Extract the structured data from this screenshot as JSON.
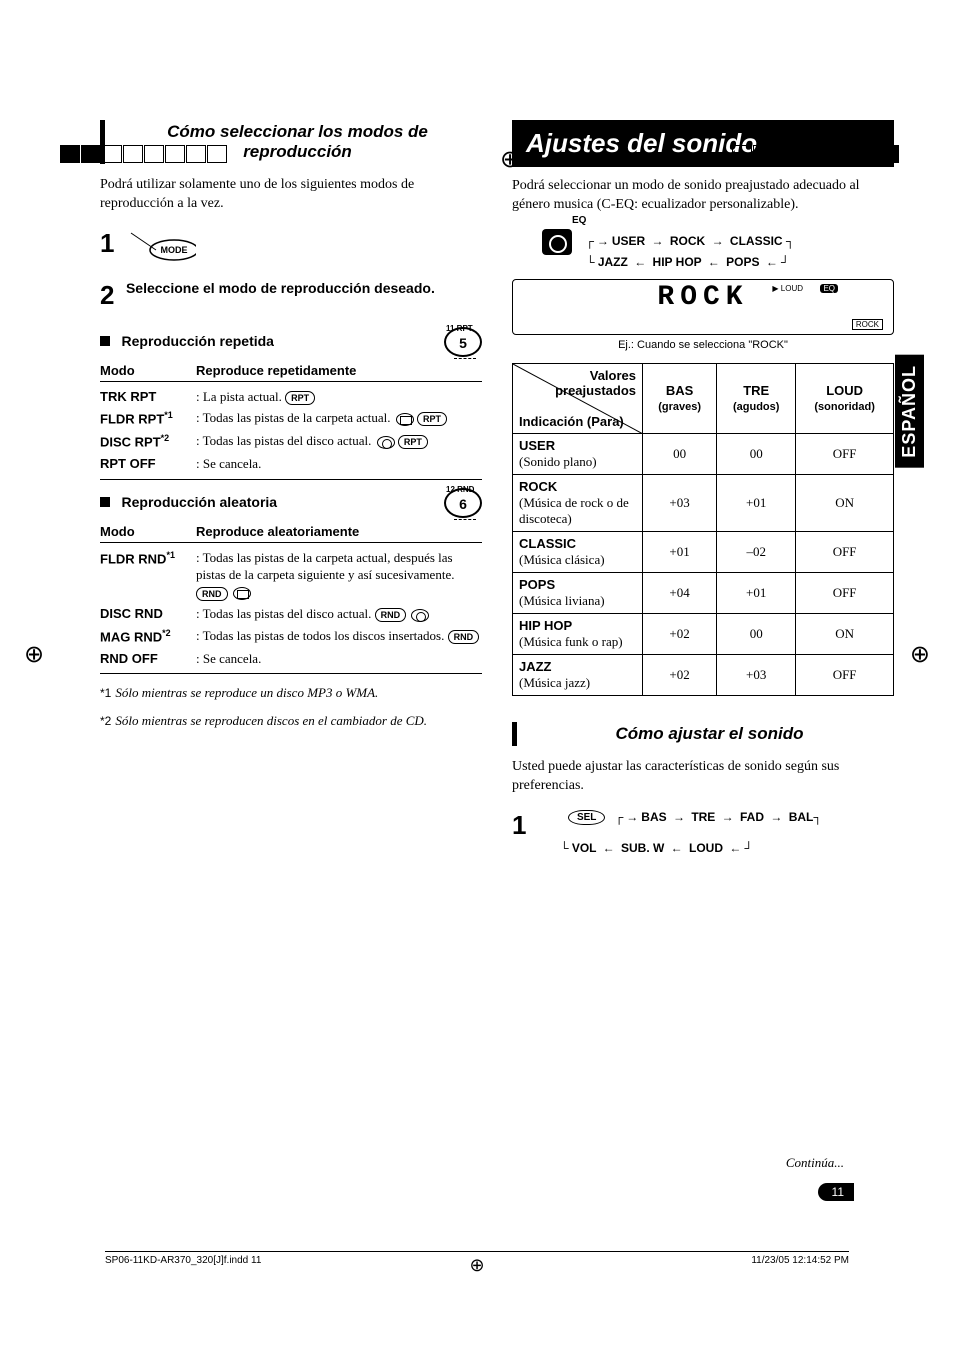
{
  "regMark": "⊕",
  "leftCol": {
    "sectionTitle": "Cómo seleccionar los modos de reproducción",
    "intro": "Podrá utilizar solamente uno de los siguientes modos de reproducción a la vez.",
    "step1Num": "1",
    "modeBtn": "MODE",
    "step2Num": "2",
    "step2Text": "Seleccione el modo de reproducción deseado.",
    "repeat": {
      "heading": "Reproducción repetida",
      "circleTiny": "11   RPT",
      "circleNum": "5",
      "colH1": "Modo",
      "colH2": "Reproduce repetidamente",
      "rows": [
        {
          "label": "TRK RPT",
          "sup": "",
          "desc": "La pista actual.",
          "icons": [
            "RPT"
          ]
        },
        {
          "label": "FLDR RPT",
          "sup": "*1",
          "desc": "Todas las pistas de la carpeta actual.",
          "icons": [
            "folder",
            "RPT"
          ]
        },
        {
          "label": "DISC RPT",
          "sup": "*2",
          "desc": "Todas las pistas del disco actual.",
          "icons": [
            "disc",
            "RPT"
          ]
        },
        {
          "label": "RPT OFF",
          "sup": "",
          "desc": "Se cancela.",
          "icons": []
        }
      ]
    },
    "random": {
      "heading": "Reproducción aleatoria",
      "circleTiny": "12   RND",
      "circleNum": "6",
      "colH1": "Modo",
      "colH2": "Reproduce aleatoriamente",
      "rows": [
        {
          "label": "FLDR RND",
          "sup": "*1",
          "desc": "Todas las pistas de la carpeta actual, después las pistas de la carpeta siguiente y así sucesivamente.",
          "icons": [
            "RND",
            "folder"
          ]
        },
        {
          "label": "DISC RND",
          "sup": "",
          "desc": "Todas las pistas del disco actual.",
          "icons": [
            "RND",
            "disc"
          ]
        },
        {
          "label": "MAG RND",
          "sup": "*2",
          "desc": "Todas las pistas de todos los discos insertados.",
          "icons": [
            "RND"
          ]
        },
        {
          "label": "RND OFF",
          "sup": "",
          "desc": "Se cancela.",
          "icons": []
        }
      ]
    },
    "footnotes": [
      {
        "mark": "*1",
        "text": "Sólo mientras se reproduce un disco MP3 o WMA."
      },
      {
        "mark": "*2",
        "text": "Sólo mientras se reproducen discos en el cambiador de CD."
      }
    ]
  },
  "rightCol": {
    "bigTitle": "Ajustes del sonido",
    "intro": "Podrá seleccionar un modo de sonido preajustado adecuado al género musica (C-EQ: ecualizador personalizable).",
    "eqLabel": "EQ",
    "eqChain1": [
      "USER",
      "ROCK",
      "CLASSIC"
    ],
    "eqChain2": [
      "JAZZ",
      "HIP HOP",
      "POPS"
    ],
    "lcd": {
      "loud": "LOUD",
      "eqBadge": "EQ",
      "text": "ROCK",
      "tag": "ROCK"
    },
    "lcdCaption": "Ej.:  Cuando se selecciona \"ROCK\"",
    "table": {
      "diagTop": "Valores preajustados",
      "diagBot": "Indicación (Para)",
      "cols": [
        {
          "h": "BAS",
          "sub": "(graves)"
        },
        {
          "h": "TRE",
          "sub": "(agudos)"
        },
        {
          "h": "LOUD",
          "sub": "(sonoridad)"
        }
      ],
      "rows": [
        {
          "name": "USER",
          "sub": "(Sonido plano)",
          "vals": [
            "00",
            "00",
            "OFF"
          ]
        },
        {
          "name": "ROCK",
          "sub": "(Música de rock o de discoteca)",
          "vals": [
            "+03",
            "+01",
            "ON"
          ]
        },
        {
          "name": "CLASSIC",
          "sub": "(Música clásica)",
          "vals": [
            "+01",
            "–02",
            "OFF"
          ]
        },
        {
          "name": "POPS",
          "sub": "(Música liviana)",
          "vals": [
            "+04",
            "+01",
            "OFF"
          ]
        },
        {
          "name": "HIP HOP",
          "sub": "(Música funk o rap)",
          "vals": [
            "+02",
            "00",
            "ON"
          ]
        },
        {
          "name": "JAZZ",
          "sub": "(Música jazz)",
          "vals": [
            "+02",
            "+03",
            "OFF"
          ]
        }
      ]
    },
    "section2": "Cómo ajustar el sonido",
    "section2Intro": "Usted puede ajustar las características de sonido según sus preferencias.",
    "step1Num": "1",
    "selBtn": "SEL",
    "selChain1": [
      "BAS",
      "TRE",
      "FAD",
      "BAL"
    ],
    "selChain2": [
      "VOL",
      "SUB. W",
      "LOUD"
    ]
  },
  "sideTab": "ESPAÑOL",
  "continua": "Continúa...",
  "pageNum": "11",
  "footer": {
    "left": "SP06-11KD-AR370_320[J]f.indd   11",
    "right": "11/23/05   12:14:52 PM"
  }
}
